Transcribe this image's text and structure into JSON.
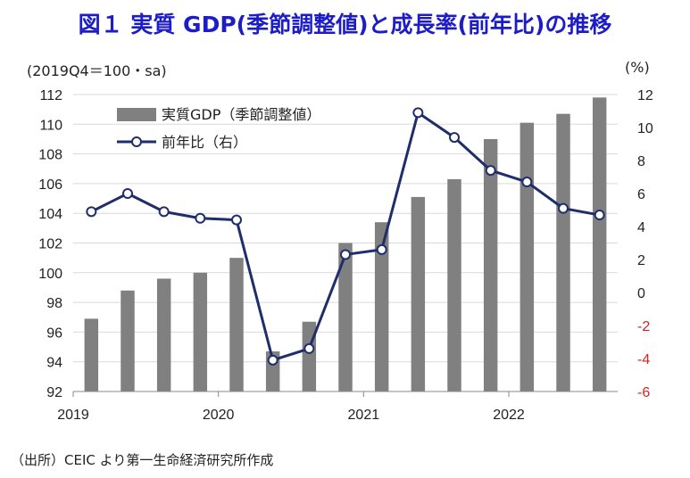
{
  "title": "図１ 実質 GDP(季節調整値)と成長率(前年比)の推移",
  "unit_left": "(2019Q4＝100・sa)",
  "unit_right": "(%)",
  "source": "（出所）CEIC より第一生命経済研究所作成",
  "colors": {
    "bar": "#808080",
    "line": "#1f2e6b",
    "negative_tick": "#e02020",
    "title": "#1d1dc8"
  },
  "chart_data": {
    "type": "bar+line",
    "title": "図１ 実質 GDP(季節調整値)と成長率(前年比)の推移",
    "categories": [
      "2019Q1",
      "2019Q2",
      "2019Q3",
      "2019Q4",
      "2020Q1",
      "2020Q2",
      "2020Q3",
      "2020Q4",
      "2021Q1",
      "2021Q2",
      "2021Q3",
      "2021Q4",
      "2022Q1",
      "2022Q2",
      "2022Q3"
    ],
    "x_tick_labels": [
      "2019",
      "2020",
      "2021",
      "2022"
    ],
    "series": [
      {
        "name": "実質GDP（季節調整値）",
        "type": "bar",
        "axis": "left",
        "values": [
          96.9,
          98.8,
          99.6,
          100.0,
          101.0,
          94.7,
          96.7,
          102.0,
          103.4,
          105.1,
          106.3,
          109.0,
          110.1,
          110.7,
          111.8
        ]
      },
      {
        "name": "前年比（右）",
        "type": "line",
        "axis": "right",
        "values": [
          4.9,
          6.0,
          4.9,
          4.5,
          4.4,
          -4.1,
          -3.4,
          2.3,
          2.6,
          10.9,
          9.4,
          7.4,
          6.7,
          5.1,
          4.7
        ]
      }
    ],
    "y_left": {
      "min": 92,
      "max": 112,
      "step": 2,
      "ticks": [
        "92",
        "94",
        "96",
        "98",
        "100",
        "102",
        "104",
        "106",
        "108",
        "110",
        "112"
      ]
    },
    "y_right": {
      "min": -6,
      "max": 12,
      "step": 2,
      "ticks": [
        "-6",
        "-4",
        "-2",
        "0",
        "2",
        "4",
        "6",
        "8",
        "10",
        "12"
      ]
    },
    "grid": true,
    "legend_position": "top-left"
  }
}
